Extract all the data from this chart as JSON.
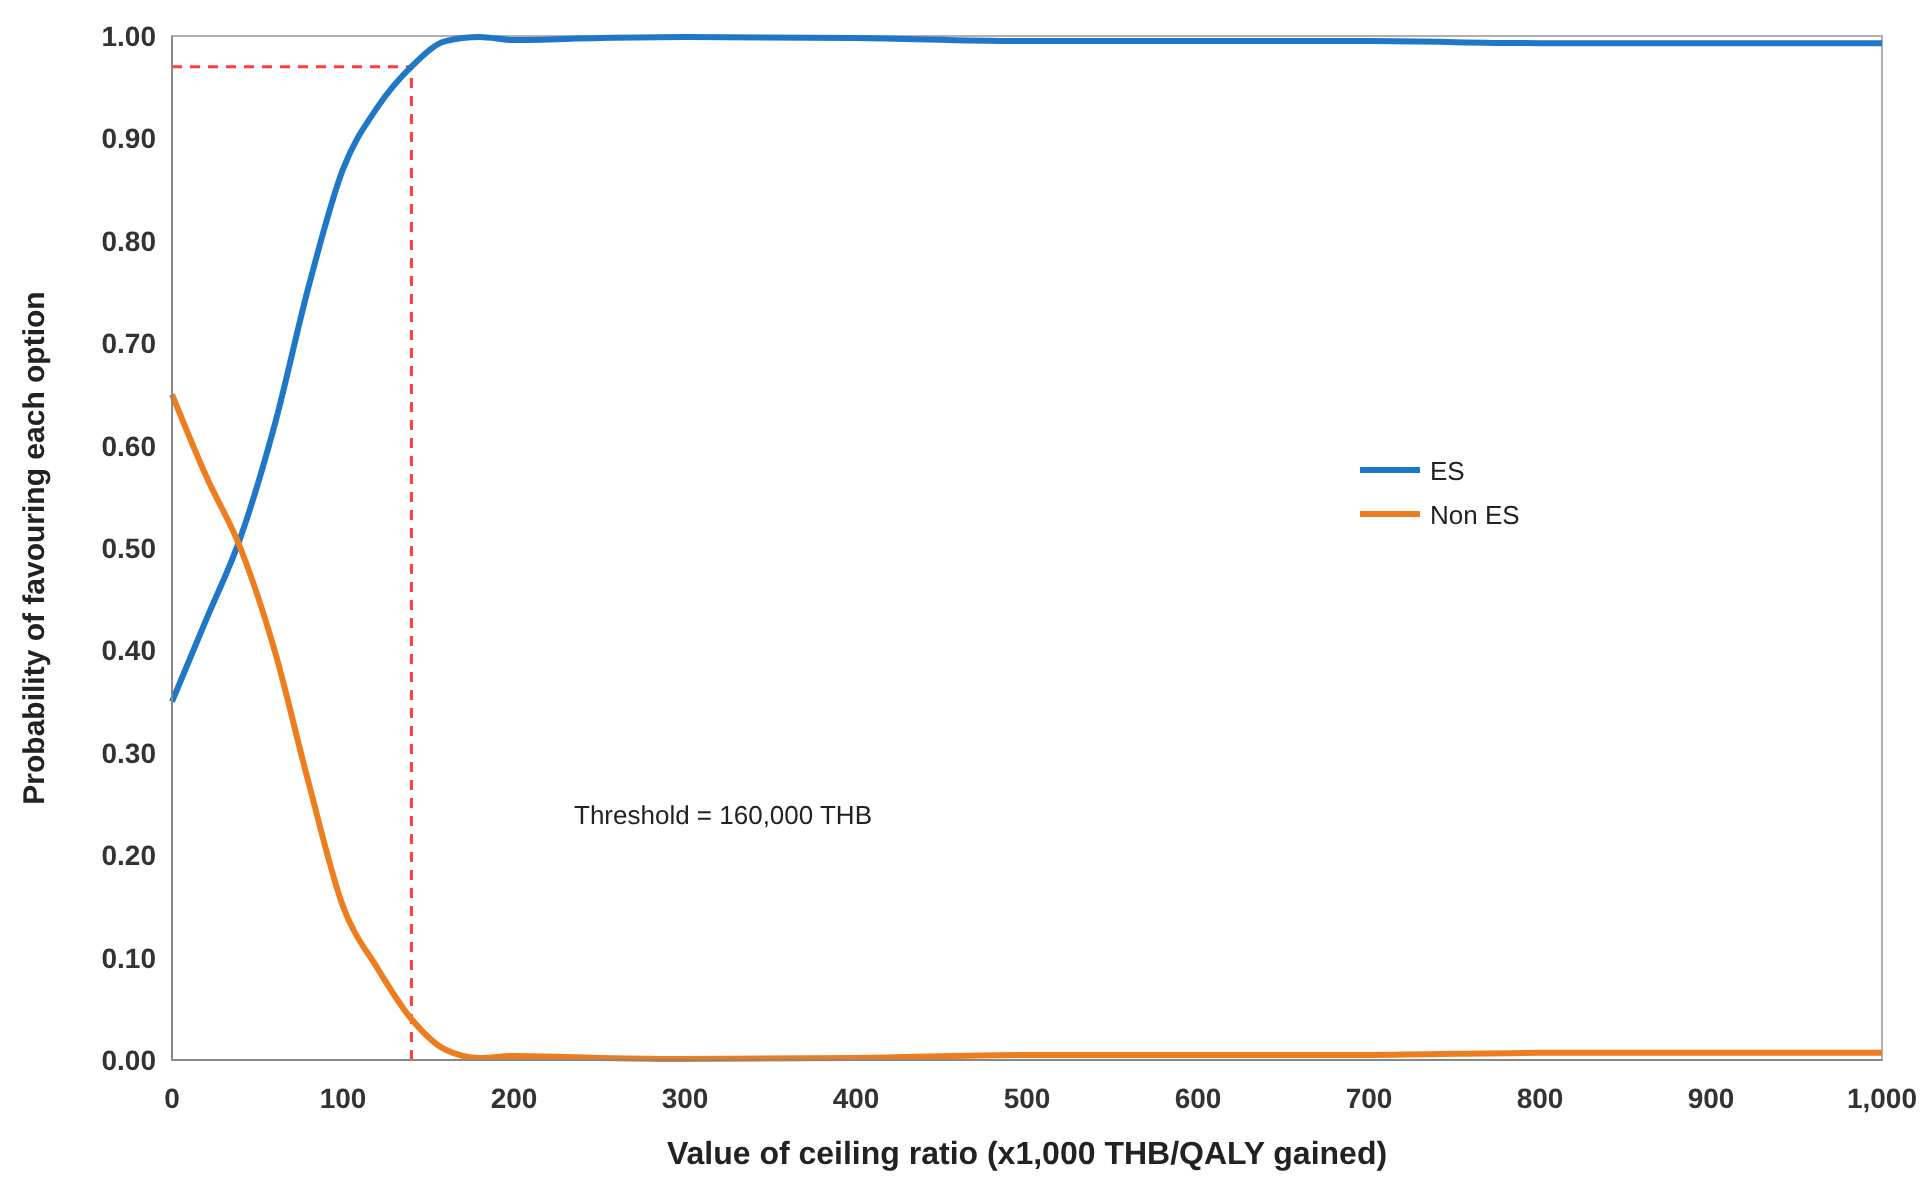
{
  "chart_data": {
    "type": "line",
    "xlabel": "Value of ceiling ratio (x1,000 THB/QALY gained)",
    "ylabel": "Probability of favouring each option",
    "x": [
      0,
      20,
      40,
      60,
      80,
      100,
      120,
      140,
      160,
      180,
      200,
      250,
      300,
      400,
      500,
      600,
      700,
      800,
      900,
      1000
    ],
    "series": [
      {
        "name": "ES",
        "color": "#1f77c8",
        "values": [
          0.35,
          0.43,
          0.51,
          0.62,
          0.756,
          0.87,
          0.93,
          0.97,
          0.995,
          0.999,
          0.996,
          0.998,
          0.999,
          0.998,
          0.995,
          0.995,
          0.995,
          0.993,
          0.993,
          0.993
        ]
      },
      {
        "name": "Non ES",
        "color": "#ed7d1f",
        "values": [
          0.65,
          0.57,
          0.5,
          0.4,
          0.27,
          0.15,
          0.09,
          0.04,
          0.01,
          0.002,
          0.004,
          0.002,
          0.001,
          0.002,
          0.005,
          0.005,
          0.005,
          0.007,
          0.007,
          0.007
        ]
      }
    ],
    "xlim": [
      0,
      1000
    ],
    "xticks": [
      0,
      100,
      200,
      300,
      400,
      500,
      600,
      700,
      800,
      900,
      {
        "value": 1000,
        "label": "1,000"
      }
    ],
    "ylim": [
      0,
      1
    ],
    "yticks": [
      {
        "value": 0,
        "label": "0.00"
      },
      {
        "value": 0.1,
        "label": "0.10"
      },
      {
        "value": 0.2,
        "label": "0.20"
      },
      {
        "value": 0.3,
        "label": "0.30"
      },
      {
        "value": 0.4,
        "label": "0.40"
      },
      {
        "value": 0.5,
        "label": "0.50"
      },
      {
        "value": 0.6,
        "label": "0.60"
      },
      {
        "value": 0.7,
        "label": "0.70"
      },
      {
        "value": 0.8,
        "label": "0.80"
      },
      {
        "value": 0.9,
        "label": "0.90"
      },
      {
        "value": 1,
        "label": "1.00"
      }
    ],
    "ref_lines": [
      {
        "axis": "x",
        "value": 140,
        "color": "#ff3b3b",
        "line_style": "dashed"
      },
      {
        "axis": "y",
        "value": 0.97,
        "color": "#ff3b3b",
        "line_style": "dashed"
      }
    ],
    "annotations": [
      "Threshold = 160,000 THB"
    ],
    "legend": "right",
    "grid": false,
    "marker": "none",
    "line_style": "solid"
  }
}
